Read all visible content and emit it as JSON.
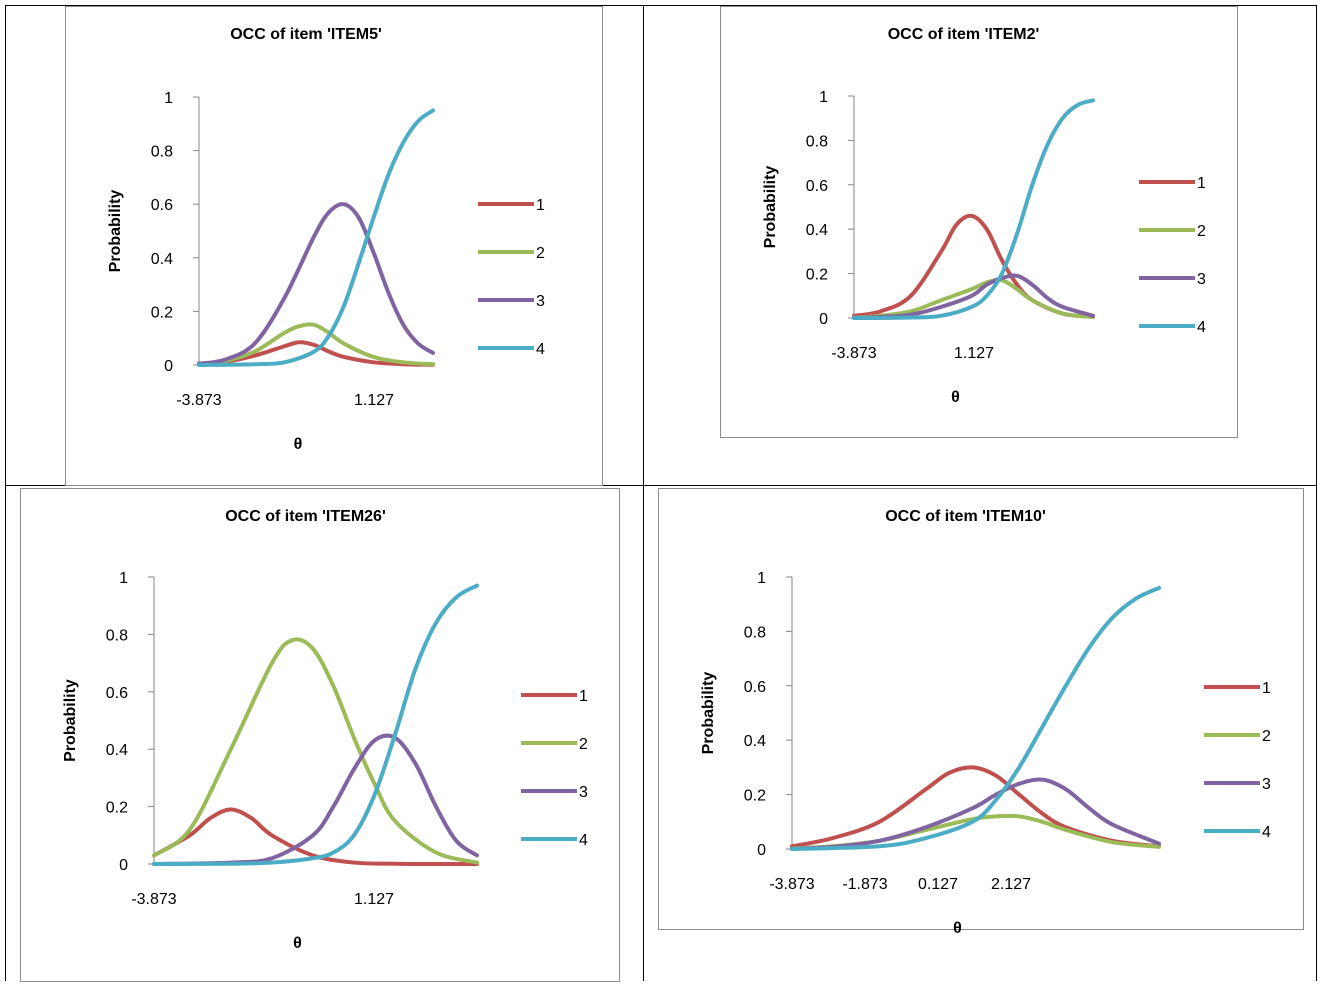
{
  "chart_data": [
    {
      "type": "line",
      "title": "OCC of item 'ITEM5'",
      "xlabel": "θ",
      "ylabel": "Probability",
      "xlim": [
        -3.873,
        4.0
      ],
      "ylim": [
        0,
        1
      ],
      "yticks": [
        "0",
        "0.2",
        "0.4",
        "0.6",
        "0.8",
        "1"
      ],
      "xticks": [
        "-3.873",
        "1.127"
      ],
      "grid": false,
      "legend": "right",
      "series": [
        {
          "name": "1",
          "color": "#c0504d",
          "x": [
            -3.873,
            -3,
            -2,
            -1,
            -0.5,
            0,
            0.5,
            1,
            2,
            3,
            4
          ],
          "y": [
            0.005,
            0.012,
            0.035,
            0.07,
            0.085,
            0.075,
            0.05,
            0.03,
            0.01,
            0.003,
            0.001
          ]
        },
        {
          "name": "2",
          "color": "#9bbb59",
          "x": [
            -3.873,
            -3,
            -2,
            -1,
            -0.5,
            0,
            0.5,
            1,
            2,
            3,
            4
          ],
          "y": [
            0.005,
            0.015,
            0.05,
            0.12,
            0.145,
            0.15,
            0.12,
            0.08,
            0.03,
            0.01,
            0.003
          ]
        },
        {
          "name": "3",
          "color": "#8064a2",
          "x": [
            -3.873,
            -3,
            -2,
            -1,
            0,
            0.5,
            1,
            1.5,
            2,
            2.5,
            3,
            3.5,
            4
          ],
          "y": [
            0.005,
            0.02,
            0.08,
            0.25,
            0.48,
            0.57,
            0.6,
            0.55,
            0.42,
            0.27,
            0.15,
            0.08,
            0.045
          ]
        },
        {
          "name": "4",
          "color": "#4bacc6",
          "x": [
            -3.873,
            -2,
            -1,
            0,
            0.5,
            1,
            1.5,
            2,
            2.5,
            3,
            3.5,
            4
          ],
          "y": [
            0.0,
            0.003,
            0.01,
            0.05,
            0.11,
            0.22,
            0.38,
            0.55,
            0.71,
            0.83,
            0.91,
            0.95
          ]
        }
      ]
    },
    {
      "type": "line",
      "title": "OCC of item 'ITEM2'",
      "xlabel": "θ",
      "ylabel": "Probability",
      "xlim": [
        -3.873,
        4.0
      ],
      "ylim": [
        0,
        1
      ],
      "yticks": [
        "0",
        "0.2",
        "0.4",
        "0.6",
        "0.8",
        "1"
      ],
      "xticks": [
        "-3.873",
        "1.127"
      ],
      "grid": false,
      "legend": "right",
      "series": [
        {
          "name": "1",
          "color": "#c0504d",
          "x": [
            -3.873,
            -3,
            -2,
            -1,
            -0.5,
            0,
            0.5,
            1,
            1.5,
            2,
            3,
            4
          ],
          "y": [
            0.01,
            0.03,
            0.1,
            0.3,
            0.42,
            0.46,
            0.4,
            0.26,
            0.15,
            0.08,
            0.02,
            0.005
          ]
        },
        {
          "name": "2",
          "color": "#9bbb59",
          "x": [
            -3.873,
            -3,
            -2,
            -1,
            0,
            0.5,
            1,
            1.5,
            2,
            3,
            4
          ],
          "y": [
            0.002,
            0.01,
            0.03,
            0.08,
            0.13,
            0.16,
            0.17,
            0.13,
            0.08,
            0.02,
            0.005
          ]
        },
        {
          "name": "3",
          "color": "#8064a2",
          "x": [
            -3.873,
            -3,
            -2,
            -1,
            0,
            0.5,
            1,
            1.5,
            2,
            2.5,
            3,
            4
          ],
          "y": [
            0.001,
            0.005,
            0.015,
            0.05,
            0.1,
            0.15,
            0.18,
            0.19,
            0.15,
            0.09,
            0.05,
            0.01
          ]
        },
        {
          "name": "4",
          "color": "#4bacc6",
          "x": [
            -3.873,
            -2,
            -1,
            0,
            0.5,
            1,
            1.5,
            2,
            2.5,
            3,
            3.5,
            4
          ],
          "y": [
            0.0,
            0.002,
            0.01,
            0.05,
            0.1,
            0.2,
            0.38,
            0.6,
            0.78,
            0.9,
            0.96,
            0.98
          ]
        }
      ]
    },
    {
      "type": "line",
      "title": "OCC of item 'ITEM26'",
      "xlabel": "θ",
      "ylabel": "Probability",
      "xlim": [
        -3.873,
        4.0
      ],
      "ylim": [
        0,
        1
      ],
      "yticks": [
        "0",
        "0.2",
        "0.4",
        "0.6",
        "0.8",
        "1"
      ],
      "xticks": [
        "-3.873",
        "1.127"
      ],
      "grid": false,
      "legend": "right",
      "series": [
        {
          "name": "1",
          "color": "#c0504d",
          "x": [
            -3.873,
            -3,
            -2.5,
            -2,
            -1.5,
            -1,
            0,
            1,
            2,
            3,
            4
          ],
          "y": [
            0.03,
            0.1,
            0.16,
            0.19,
            0.16,
            0.1,
            0.03,
            0.005,
            0.001,
            0.0,
            0.0
          ]
        },
        {
          "name": "2",
          "color": "#9bbb59",
          "x": [
            -3.873,
            -3,
            -2,
            -1,
            -0.5,
            0,
            0.5,
            1,
            1.5,
            2,
            3,
            4
          ],
          "y": [
            0.03,
            0.12,
            0.4,
            0.7,
            0.78,
            0.75,
            0.62,
            0.44,
            0.28,
            0.15,
            0.04,
            0.005
          ]
        },
        {
          "name": "3",
          "color": "#8064a2",
          "x": [
            -3.873,
            -2,
            -1,
            0,
            0.5,
            1,
            1.5,
            2,
            2.5,
            3,
            3.5,
            4
          ],
          "y": [
            0.0,
            0.005,
            0.02,
            0.1,
            0.2,
            0.33,
            0.43,
            0.44,
            0.35,
            0.2,
            0.08,
            0.03
          ]
        },
        {
          "name": "4",
          "color": "#4bacc6",
          "x": [
            -3.873,
            -2,
            -1,
            0,
            0.5,
            1,
            1.5,
            2,
            2.5,
            3,
            3.5,
            4
          ],
          "y": [
            0.0,
            0.001,
            0.005,
            0.02,
            0.04,
            0.1,
            0.24,
            0.45,
            0.68,
            0.84,
            0.93,
            0.97
          ]
        }
      ]
    },
    {
      "type": "line",
      "title": "OCC of item 'ITEM10'",
      "xlabel": "θ",
      "ylabel": "Probability",
      "xlim": [
        -3.873,
        4.0
      ],
      "ylim": [
        0,
        1
      ],
      "yticks": [
        "0",
        "0.2",
        "0.4",
        "0.6",
        "0.8",
        "1"
      ],
      "xticks": [
        "-3.873",
        "-1.873",
        "0.127",
        "2.127"
      ],
      "grid": false,
      "legend": "right",
      "series": [
        {
          "name": "1",
          "color": "#c0504d",
          "x": [
            -3.873,
            -3,
            -2,
            -1,
            -0.5,
            0,
            0.5,
            1,
            1.5,
            2,
            3,
            4
          ],
          "y": [
            0.01,
            0.04,
            0.1,
            0.22,
            0.28,
            0.3,
            0.27,
            0.2,
            0.13,
            0.08,
            0.03,
            0.01
          ]
        },
        {
          "name": "2",
          "color": "#9bbb59",
          "x": [
            -3.873,
            -3,
            -2,
            -1,
            0,
            0.5,
            1,
            1.5,
            2,
            3,
            4
          ],
          "y": [
            0.002,
            0.01,
            0.03,
            0.07,
            0.11,
            0.12,
            0.12,
            0.1,
            0.07,
            0.025,
            0.008
          ]
        },
        {
          "name": "3",
          "color": "#8064a2",
          "x": [
            -3.873,
            -3,
            -2,
            -1,
            0,
            0.5,
            1,
            1.5,
            2,
            2.5,
            3,
            4
          ],
          "y": [
            0.001,
            0.008,
            0.03,
            0.08,
            0.15,
            0.2,
            0.24,
            0.255,
            0.22,
            0.15,
            0.09,
            0.02
          ]
        },
        {
          "name": "4",
          "color": "#4bacc6",
          "x": [
            -3.873,
            -2,
            -1,
            0,
            0.5,
            1,
            1.5,
            2,
            2.5,
            3,
            3.5,
            4
          ],
          "y": [
            0.0,
            0.01,
            0.04,
            0.1,
            0.18,
            0.3,
            0.45,
            0.6,
            0.74,
            0.85,
            0.92,
            0.96
          ]
        }
      ]
    }
  ]
}
